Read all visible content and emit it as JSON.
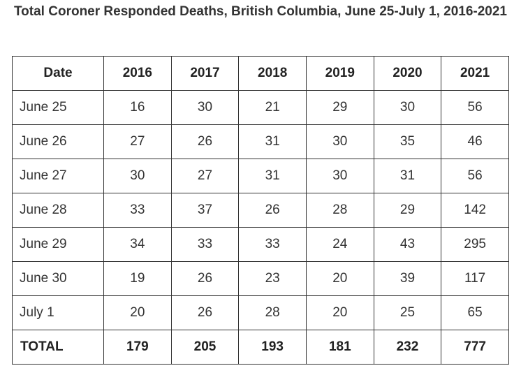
{
  "title": "Total Coroner Responded Deaths, British Columbia, June 25-July 1, 2016-2021",
  "table": {
    "headers": [
      "Date",
      "2016",
      "2017",
      "2018",
      "2019",
      "2020",
      "2021"
    ],
    "rows": [
      {
        "date": "June 25",
        "values": [
          "16",
          "30",
          "21",
          "29",
          "30",
          "56"
        ]
      },
      {
        "date": "June 26",
        "values": [
          "27",
          "26",
          "31",
          "30",
          "35",
          "46"
        ]
      },
      {
        "date": "June 27",
        "values": [
          "30",
          "27",
          "31",
          "30",
          "31",
          "56"
        ]
      },
      {
        "date": "June 28",
        "values": [
          "33",
          "37",
          "26",
          "28",
          "29",
          "142"
        ]
      },
      {
        "date": "June 29",
        "values": [
          "34",
          "33",
          "33",
          "24",
          "43",
          "295"
        ]
      },
      {
        "date": "June 30",
        "values": [
          "19",
          "26",
          "23",
          "20",
          "39",
          "117"
        ]
      },
      {
        "date": "July 1",
        "values": [
          "20",
          "26",
          "28",
          "20",
          "25",
          "65"
        ]
      }
    ],
    "total": {
      "date": "TOTAL",
      "values": [
        "179",
        "205",
        "193",
        "181",
        "232",
        "777"
      ]
    }
  }
}
